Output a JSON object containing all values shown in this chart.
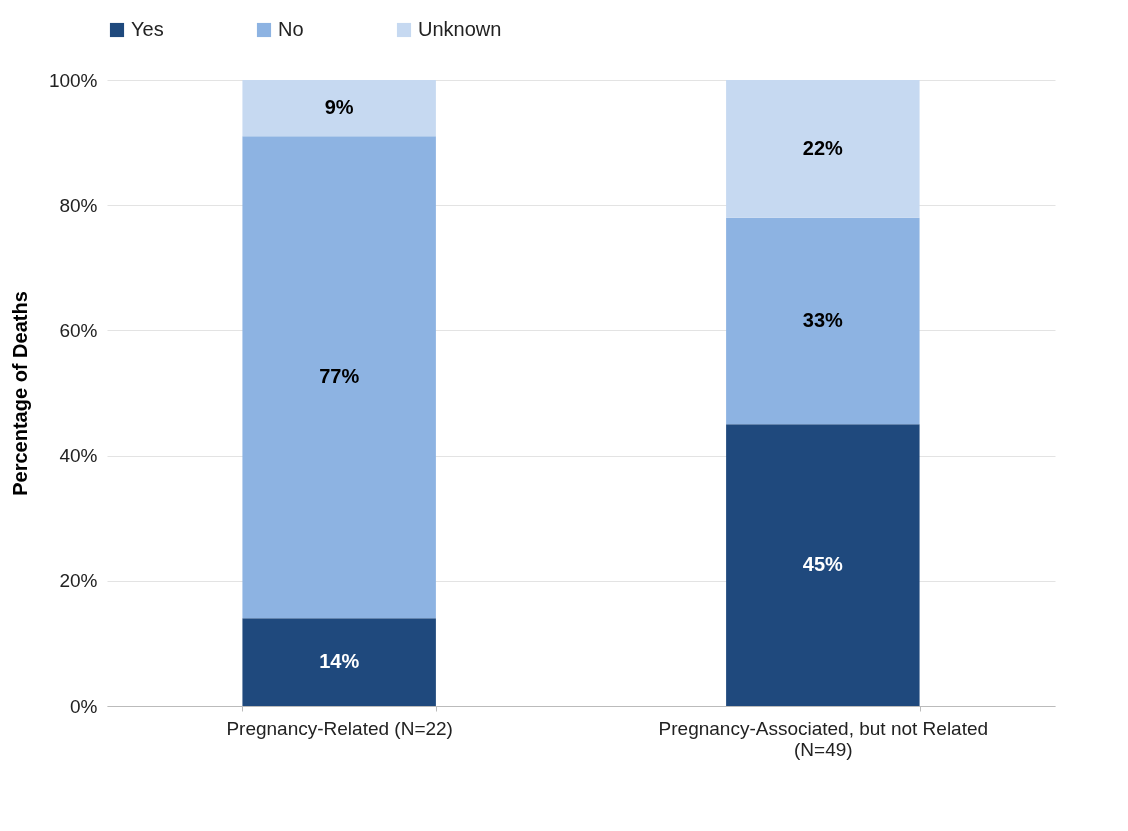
{
  "chart_data": {
    "type": "bar",
    "stacked": true,
    "ylabel": "Percentage of Deaths",
    "categories": [
      "Pregnancy-Related (N=22)",
      "Pregnancy-Associated, but not Related (N=49)"
    ],
    "series": [
      {
        "name": "Yes",
        "color": "#1f497d",
        "values": [
          14,
          45
        ],
        "value_labels": [
          "14%",
          "45%"
        ]
      },
      {
        "name": "No",
        "color": "#8db3e2",
        "values": [
          77,
          33
        ],
        "value_labels": [
          "77%",
          "33%"
        ]
      },
      {
        "name": "Unknown",
        "color": "#c6d9f1",
        "values": [
          9,
          22
        ],
        "value_labels": [
          "9%",
          "22%"
        ]
      }
    ],
    "ylim": [
      0,
      100
    ],
    "yticks": [
      {
        "value": 0,
        "label": "0%"
      },
      {
        "value": 20,
        "label": "20%"
      },
      {
        "value": 40,
        "label": "40%"
      },
      {
        "value": 60,
        "label": "60%"
      },
      {
        "value": 80,
        "label": "80%"
      },
      {
        "value": 100,
        "label": "100%"
      }
    ],
    "grid": "y",
    "legend": "top"
  }
}
